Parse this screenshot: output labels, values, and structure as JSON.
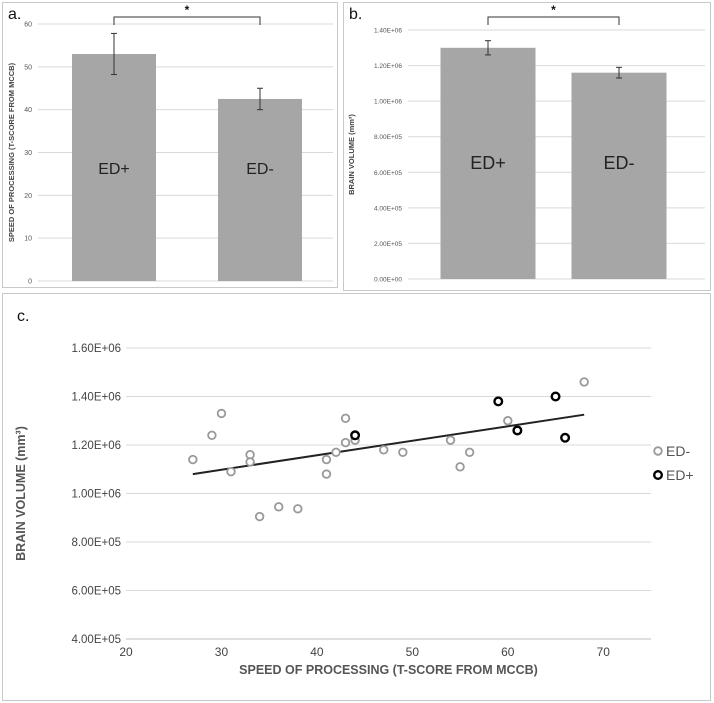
{
  "chart_data": [
    {
      "id": "a",
      "panel_label": "a.",
      "type": "bar",
      "categories": [
        "ED+",
        "ED-"
      ],
      "values": [
        53,
        42.5
      ],
      "errors": [
        4.8,
        2.5
      ],
      "ylabel": "SPEED OF PROCESSING (T-SCORE FROM MCCB)",
      "ylim": [
        0,
        60
      ],
      "yticks": [
        "0",
        "10",
        "20",
        "30",
        "40",
        "50",
        "60"
      ],
      "yticks_values": [
        0,
        10,
        20,
        30,
        40,
        50,
        60
      ],
      "significance": "*",
      "bar_color": "#a6a6a6",
      "grid": true
    },
    {
      "id": "b",
      "panel_label": "b.",
      "type": "bar",
      "categories": [
        "ED+",
        "ED-"
      ],
      "values": [
        1300000,
        1160000
      ],
      "errors": [
        40000,
        30000
      ],
      "ylabel": "BRAIN VOLUME (mm³)",
      "ylim": [
        0,
        1400000
      ],
      "yticks": [
        "0.00E+00",
        "2.00E+05",
        "4.00E+05",
        "6.00E+05",
        "8.00E+05",
        "1.00E+06",
        "1.20E+06",
        "1.40E+06"
      ],
      "yticks_values": [
        0,
        200000,
        400000,
        600000,
        800000,
        1000000,
        1200000,
        1400000
      ],
      "significance": "*",
      "bar_color": "#a6a6a6",
      "grid": true
    },
    {
      "id": "c",
      "panel_label": "c.",
      "type": "scatter",
      "xlabel": "SPEED OF PROCESSING (T-SCORE FROM MCCB)",
      "ylabel": "BRAIN VOLUME (mm³)",
      "xlim": [
        20,
        75
      ],
      "ylim": [
        400000,
        1600000
      ],
      "xticks": [
        "20",
        "30",
        "40",
        "50",
        "60",
        "70"
      ],
      "xticks_values": [
        20,
        30,
        40,
        50,
        60,
        70
      ],
      "yticks": [
        "4.00E+05",
        "6.00E+05",
        "8.00E+05",
        "1.00E+06",
        "1.20E+06",
        "1.40E+06",
        "1.60E+06"
      ],
      "yticks_values": [
        400000,
        600000,
        800000,
        1000000,
        1200000,
        1400000,
        1600000
      ],
      "legend_position": "right",
      "series": [
        {
          "name": "ED-",
          "color": "#999999",
          "points": [
            [
              27,
              1140000
            ],
            [
              29,
              1240000
            ],
            [
              30,
              1330000
            ],
            [
              31,
              1090000
            ],
            [
              33,
              1160000
            ],
            [
              33,
              1130000
            ],
            [
              34,
              905000
            ],
            [
              36,
              945000
            ],
            [
              38,
              937000
            ],
            [
              41,
              1080000
            ],
            [
              41,
              1140000
            ],
            [
              42,
              1170000
            ],
            [
              43,
              1310000
            ],
            [
              43,
              1210000
            ],
            [
              44,
              1220000
            ],
            [
              47,
              1180000
            ],
            [
              49,
              1170000
            ],
            [
              54,
              1220000
            ],
            [
              55,
              1110000
            ],
            [
              56,
              1170000
            ],
            [
              60,
              1300000
            ],
            [
              68,
              1460000
            ]
          ]
        },
        {
          "name": "ED+",
          "color": "#000000",
          "points": [
            [
              44,
              1240000
            ],
            [
              59,
              1380000
            ],
            [
              61,
              1260000
            ],
            [
              65,
              1400000
            ],
            [
              66,
              1230000
            ]
          ]
        }
      ],
      "trendline": {
        "x": [
          27,
          68
        ],
        "y": [
          1080000,
          1325000
        ],
        "color": "#222222"
      }
    }
  ]
}
